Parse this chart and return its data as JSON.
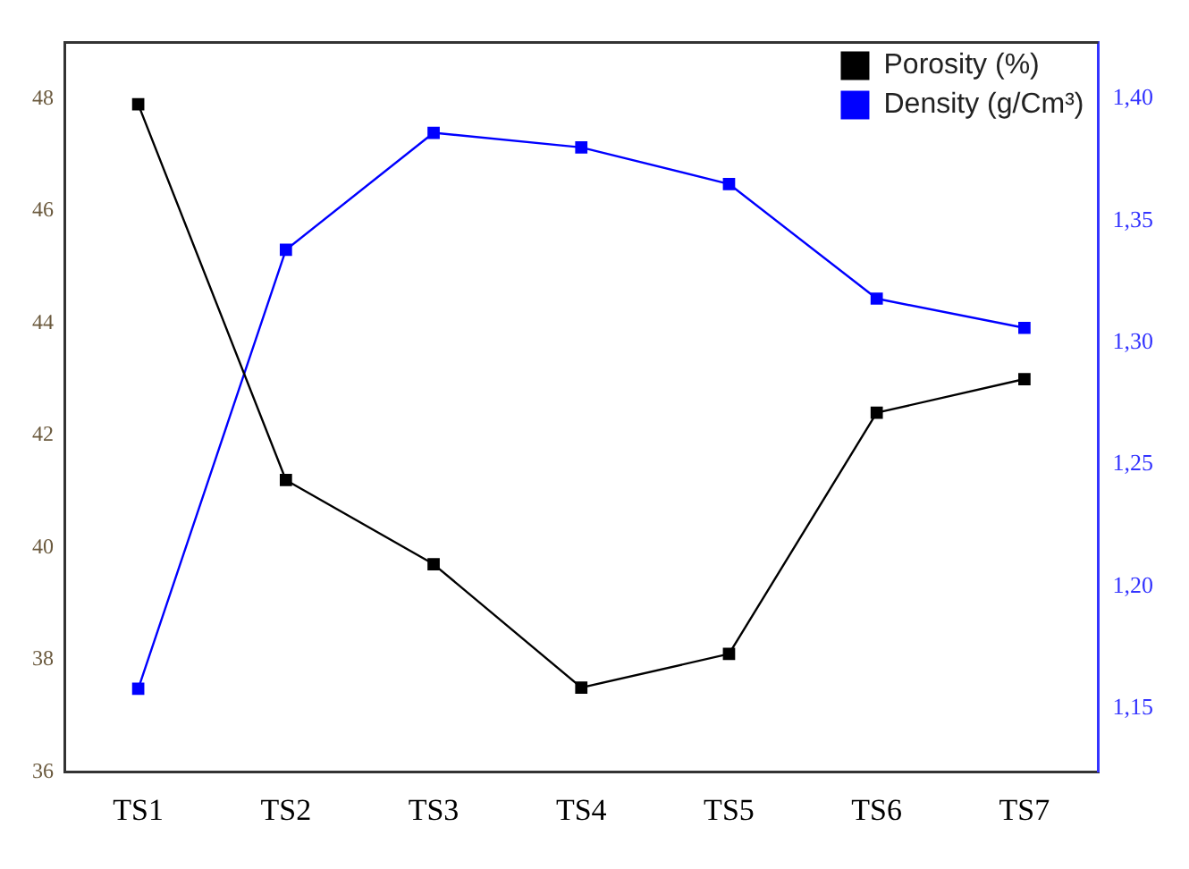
{
  "chart_data": {
    "type": "line",
    "categories": [
      "TS1",
      "TS2",
      "TS3",
      "TS4",
      "TS5",
      "TS6",
      "TS7"
    ],
    "series": [
      {
        "name": "Porosity (%)",
        "color": "#000000",
        "values": [
          47.9,
          41.2,
          39.7,
          37.5,
          38.1,
          42.4,
          43.0
        ]
      },
      {
        "name": "Density (g/Cm³)",
        "color": "#0000ff",
        "axis": "y2",
        "values": [
          1.158,
          1.338,
          1.386,
          1.38,
          1.365,
          1.318,
          1.306
        ]
      }
    ],
    "ylim": [
      36,
      49
    ],
    "yticks": [
      36,
      38,
      40,
      42,
      44,
      46,
      48
    ],
    "y2lim": [
      1.124,
      1.423
    ],
    "y2ticks": [
      {
        "value": 1.15,
        "label": "1,15"
      },
      {
        "value": 1.2,
        "label": "1,20"
      },
      {
        "value": 1.25,
        "label": "1,25"
      },
      {
        "value": 1.3,
        "label": "1,30"
      },
      {
        "value": 1.35,
        "label": "1,35"
      },
      {
        "value": 1.4,
        "label": "1,40"
      }
    ],
    "grid": false,
    "legend": "top right",
    "marker": "square",
    "line_style": "solid"
  }
}
